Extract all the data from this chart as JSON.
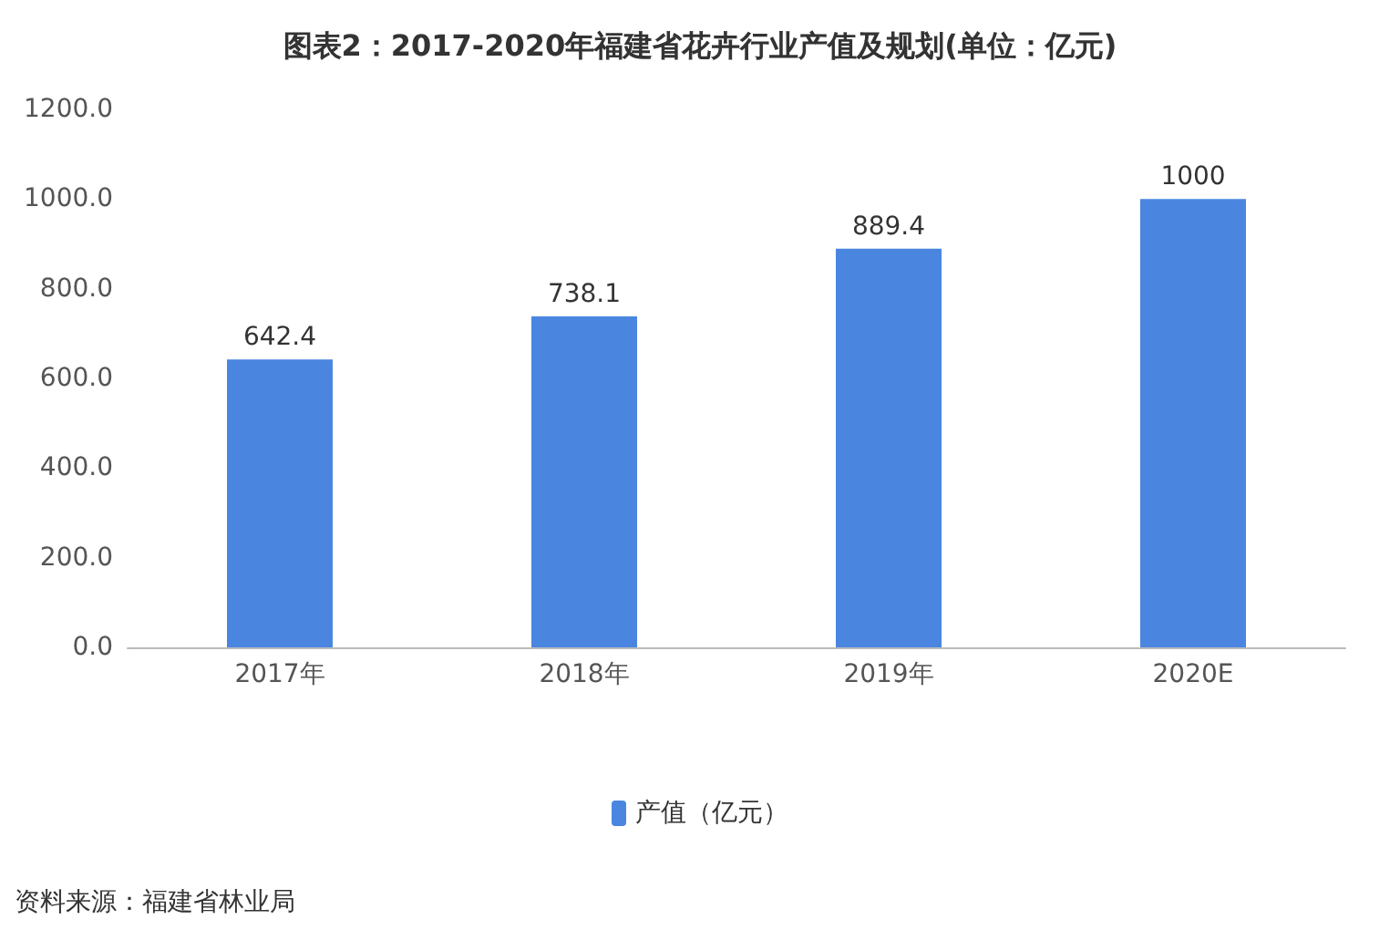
{
  "chart_data": {
    "type": "bar",
    "title": "图表2：2017-2020年福建省花卉行业产值及规划(单位：亿元)",
    "categories": [
      "2017年",
      "2018年",
      "2019年",
      "2020E"
    ],
    "series": [
      {
        "name": "产值（亿元）",
        "color": "#4a86e0",
        "values": [
          642.4,
          738.1,
          889.4,
          1000
        ]
      }
    ],
    "ylim": [
      0,
      1200
    ],
    "yticks": [
      {
        "value": 0,
        "label": "0.0"
      },
      {
        "value": 200,
        "label": "200.0"
      },
      {
        "value": 400,
        "label": "400.0"
      },
      {
        "value": 600,
        "label": "600.0"
      },
      {
        "value": 800,
        "label": "800.0"
      },
      {
        "value": 1000,
        "label": "1000.0"
      },
      {
        "value": 1200,
        "label": "1200.0"
      }
    ],
    "data_labels": true,
    "grid": false,
    "legend": "bottom",
    "annotations": [
      "资料来源：福建省林业局"
    ]
  }
}
